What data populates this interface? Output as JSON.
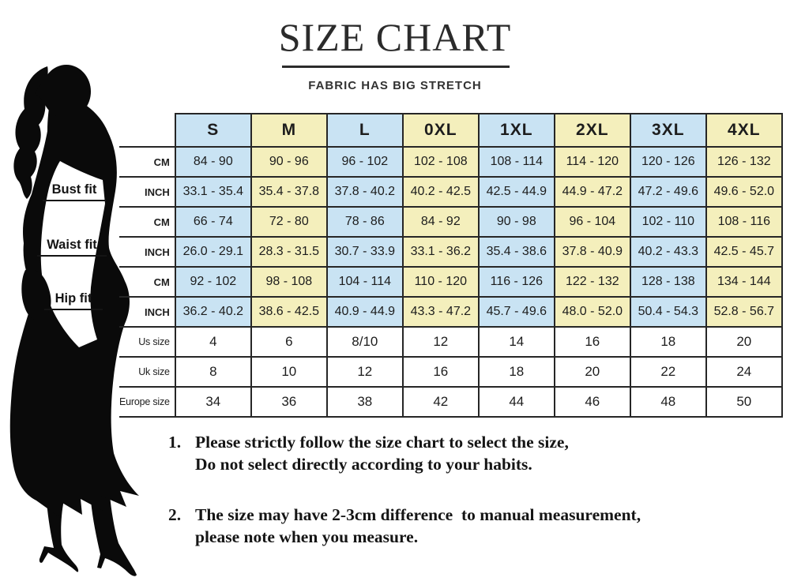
{
  "chart_data": {
    "type": "table",
    "title": "SIZE CHART",
    "subtitle": "FABRIC HAS BIG STRETCH",
    "columns": [
      "S",
      "M",
      "L",
      "0XL",
      "1XL",
      "2XL",
      "3XL",
      "4XL"
    ],
    "rows": [
      {
        "label": "CM",
        "group": "Bust fit",
        "colored": true,
        "values": [
          "84 - 90",
          "90 - 96",
          "96 - 102",
          "102 - 108",
          "108 - 114",
          "114 - 120",
          "120 - 126",
          "126 - 132"
        ]
      },
      {
        "label": "INCH",
        "group": "Bust fit",
        "colored": true,
        "values": [
          "33.1 - 35.4",
          "35.4 - 37.8",
          "37.8 - 40.2",
          "40.2 - 42.5",
          "42.5 - 44.9",
          "44.9 - 47.2",
          "47.2 - 49.6",
          "49.6 - 52.0"
        ]
      },
      {
        "label": "CM",
        "group": "Waist fit",
        "colored": true,
        "values": [
          "66 - 74",
          "72 - 80",
          "78 - 86",
          "84 - 92",
          "90 - 98",
          "96 - 104",
          "102 - 110",
          "108 - 116"
        ]
      },
      {
        "label": "INCH",
        "group": "Waist fit",
        "colored": true,
        "values": [
          "26.0 - 29.1",
          "28.3 - 31.5",
          "30.7 - 33.9",
          "33.1 - 36.2",
          "35.4 - 38.6",
          "37.8 - 40.9",
          "40.2 - 43.3",
          "42.5 - 45.7"
        ]
      },
      {
        "label": "CM",
        "group": "Hip fit",
        "colored": true,
        "values": [
          "92 - 102",
          "98 - 108",
          "104 - 114",
          "110 - 120",
          "116 - 126",
          "122 - 132",
          "128 - 138",
          "134 - 144"
        ]
      },
      {
        "label": "INCH",
        "group": "Hip fit",
        "colored": true,
        "values": [
          "36.2 - 40.2",
          "38.6 - 42.5",
          "40.9 - 44.9",
          "43.3 - 47.2",
          "45.7 - 49.6",
          "48.0 - 52.0",
          "50.4 - 54.3",
          "52.8 - 56.7"
        ]
      },
      {
        "label": "Us size",
        "group": null,
        "colored": false,
        "values": [
          "4",
          "6",
          "8/10",
          "12",
          "14",
          "16",
          "18",
          "20"
        ]
      },
      {
        "label": "Uk size",
        "group": null,
        "colored": false,
        "values": [
          "8",
          "10",
          "12",
          "16",
          "18",
          "20",
          "22",
          "24"
        ]
      },
      {
        "label": "Europe size",
        "group": null,
        "colored": false,
        "values": [
          "34",
          "36",
          "38",
          "42",
          "44",
          "46",
          "48",
          "50"
        ]
      }
    ],
    "measure_labels": [
      {
        "label": "Bust fit"
      },
      {
        "label": "Waist fit"
      },
      {
        "label": "Hip fit"
      }
    ],
    "notes": [
      {
        "number": "1.",
        "line1": "Please strictly follow the size chart to select the size,",
        "line2": "Do not select directly according to your habits."
      },
      {
        "number": "2.",
        "line1": "The size may have 2-3cm difference  to manual measurement,",
        "line2": "please note when you measure."
      }
    ],
    "legend_position": "none",
    "grid": true
  },
  "colors": {
    "column_blue": "#c9e3f3",
    "column_yellow": "#f4efbc",
    "table_line": "#262626",
    "silhouette": "#0a0a0a"
  },
  "figure_description": "black silhouette of a woman in a long dress with high heels"
}
